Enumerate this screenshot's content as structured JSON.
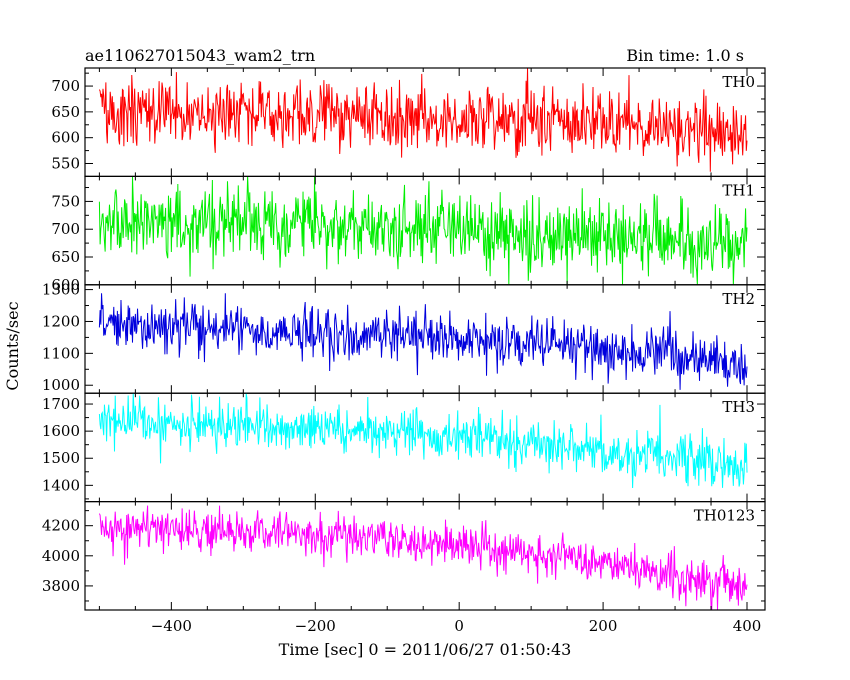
{
  "header": {
    "title": "ae110627015043_wam2_trn",
    "bin_time": "Bin time: 1.0 s"
  },
  "chart_data": {
    "type": "line",
    "xlabel": "Time [sec] 0 = 2011/06/27 01:50:43",
    "ylabel": "Counts/sec",
    "xlim": [
      -520,
      425
    ],
    "x_ticks": [
      -400,
      -200,
      0,
      200,
      400
    ],
    "x_start": -500,
    "x_end": 400,
    "bin": 1.0,
    "panels": [
      {
        "name": "TH0",
        "color": "#ff0000",
        "ylim": [
          525,
          735
        ],
        "y_ticks": [
          550,
          600,
          650,
          700
        ],
        "trend": [
          [
            -500,
            652
          ],
          [
            -300,
            650
          ],
          [
            -100,
            640
          ],
          [
            100,
            632
          ],
          [
            300,
            620
          ],
          [
            400,
            608
          ]
        ],
        "noise_sd": 32
      },
      {
        "name": "TH1",
        "color": "#00ee00",
        "ylim": [
          600,
          795
        ],
        "y_ticks": [
          600,
          650,
          700,
          750
        ],
        "trend": [
          [
            -500,
            715
          ],
          [
            -300,
            712
          ],
          [
            -100,
            705
          ],
          [
            100,
            695
          ],
          [
            300,
            680
          ],
          [
            400,
            668
          ]
        ],
        "noise_sd": 32
      },
      {
        "name": "TH2",
        "color": "#0000dd",
        "ylim": [
          975,
          1315
        ],
        "y_ticks": [
          1000,
          1100,
          1200,
          1300
        ],
        "trend": [
          [
            -500,
            1190
          ],
          [
            -300,
            1175
          ],
          [
            -100,
            1160
          ],
          [
            100,
            1130
          ],
          [
            300,
            1100
          ],
          [
            400,
            1060
          ]
        ],
        "noise_sd": 40
      },
      {
        "name": "TH3",
        "color": "#00ffff",
        "ylim": [
          1340,
          1740
        ],
        "y_ticks": [
          1400,
          1500,
          1600,
          1700
        ],
        "trend": [
          [
            -500,
            1640
          ],
          [
            -300,
            1620
          ],
          [
            -100,
            1600
          ],
          [
            100,
            1560
          ],
          [
            300,
            1510
          ],
          [
            400,
            1460
          ]
        ],
        "noise_sd": 45
      },
      {
        "name": "TH0123",
        "color": "#ff00ff",
        "ylim": [
          3640,
          4360
        ],
        "y_ticks": [
          3800,
          4000,
          4200
        ],
        "trend": [
          [
            -500,
            4200
          ],
          [
            -300,
            4160
          ],
          [
            -100,
            4120
          ],
          [
            100,
            4030
          ],
          [
            300,
            3870
          ],
          [
            400,
            3790
          ]
        ],
        "noise_sd": 70
      }
    ]
  }
}
